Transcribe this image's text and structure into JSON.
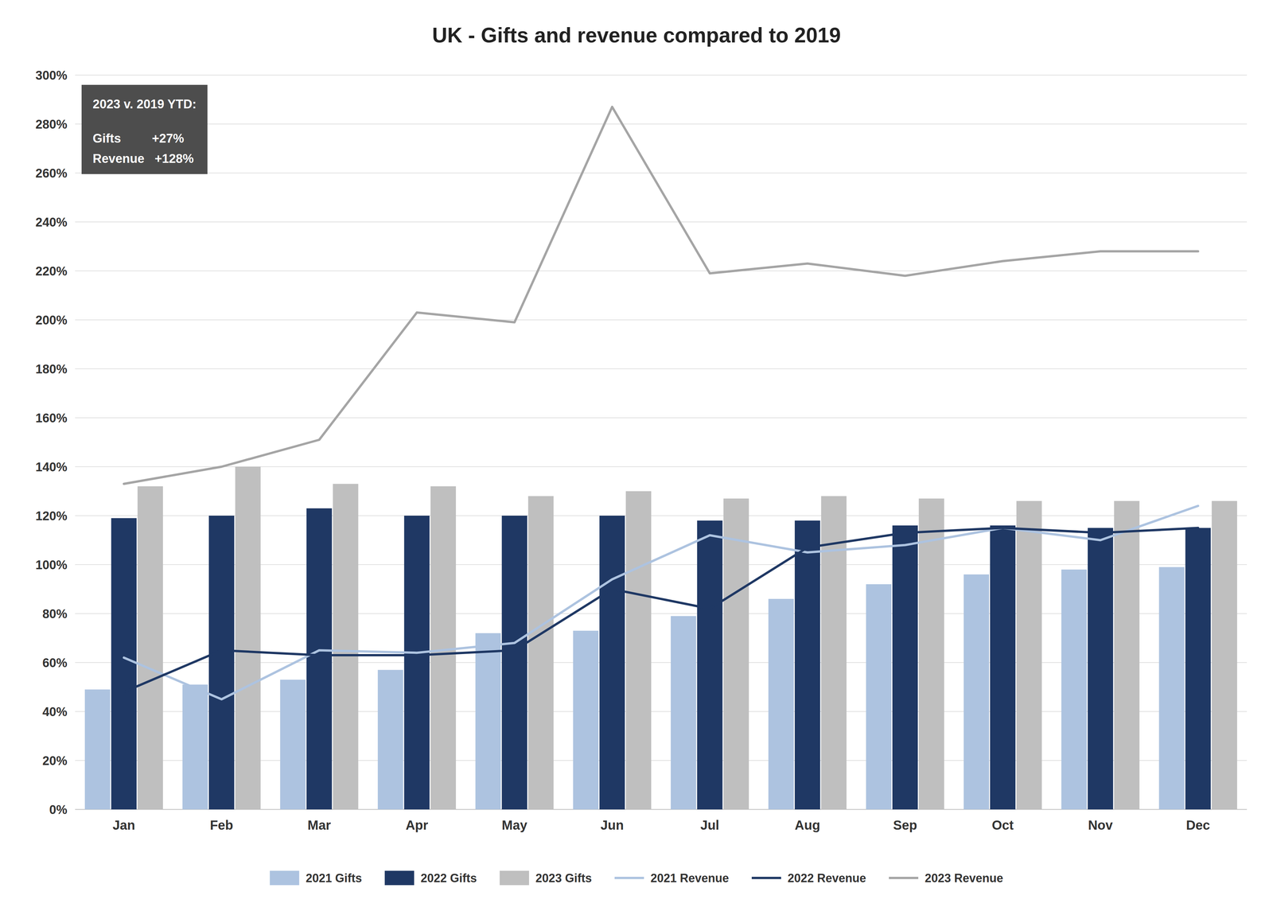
{
  "chart_data": {
    "type": "bar",
    "title": "UK - Gifts and revenue compared to 2019",
    "categories": [
      "Jan",
      "Feb",
      "Mar",
      "Apr",
      "May",
      "Jun",
      "Jul",
      "Aug",
      "Sep",
      "Oct",
      "Nov",
      "Dec"
    ],
    "series": [
      {
        "name": "2021 Gifts",
        "type": "bar",
        "color": "#adc3e0",
        "values": [
          49,
          51,
          53,
          57,
          72,
          73,
          79,
          86,
          92,
          96,
          98,
          99
        ]
      },
      {
        "name": "2022 Gifts",
        "type": "bar",
        "color": "#1f3864",
        "values": [
          119,
          120,
          123,
          120,
          120,
          120,
          118,
          118,
          116,
          116,
          115,
          115
        ]
      },
      {
        "name": "2023 Gifts",
        "type": "bar",
        "color": "#bfbfbf",
        "values": [
          132,
          140,
          133,
          132,
          128,
          130,
          127,
          128,
          127,
          126,
          126,
          126
        ]
      },
      {
        "name": "2021 Revenue",
        "type": "line",
        "color": "#adc3e0",
        "values": [
          62,
          45,
          65,
          64,
          68,
          94,
          112,
          105,
          108,
          115,
          110,
          124
        ]
      },
      {
        "name": "2022 Revenue",
        "type": "line",
        "color": "#1f3864",
        "values": [
          48,
          65,
          63,
          63,
          65,
          90,
          82,
          107,
          113,
          115,
          113,
          115
        ]
      },
      {
        "name": "2023 Revenue",
        "type": "line",
        "color": "#a5a5a5",
        "values": [
          133,
          140,
          151,
          203,
          199,
          287,
          219,
          223,
          218,
          224,
          228,
          228
        ]
      }
    ],
    "ylim": [
      0,
      300
    ],
    "yticks": [
      {
        "value": 0,
        "label": "0%"
      },
      {
        "value": 20,
        "label": "20%"
      },
      {
        "value": 40,
        "label": "40%"
      },
      {
        "value": 60,
        "label": "60%"
      },
      {
        "value": 80,
        "label": "80%"
      },
      {
        "value": 100,
        "label": "100%"
      },
      {
        "value": 120,
        "label": "120%"
      },
      {
        "value": 140,
        "label": "140%"
      },
      {
        "value": 160,
        "label": "160%"
      },
      {
        "value": 180,
        "label": "180%"
      },
      {
        "value": 200,
        "label": "200%"
      },
      {
        "value": 220,
        "label": "220%"
      },
      {
        "value": 240,
        "label": "240%"
      },
      {
        "value": 260,
        "label": "260%"
      },
      {
        "value": 280,
        "label": "280%"
      },
      {
        "value": 300,
        "label": "300%"
      }
    ],
    "grid": true,
    "legend": "bottom",
    "annotations": [
      "2023 v. 2019 YTD:",
      "Gifts         +27%",
      "Revenue   +128%"
    ]
  }
}
